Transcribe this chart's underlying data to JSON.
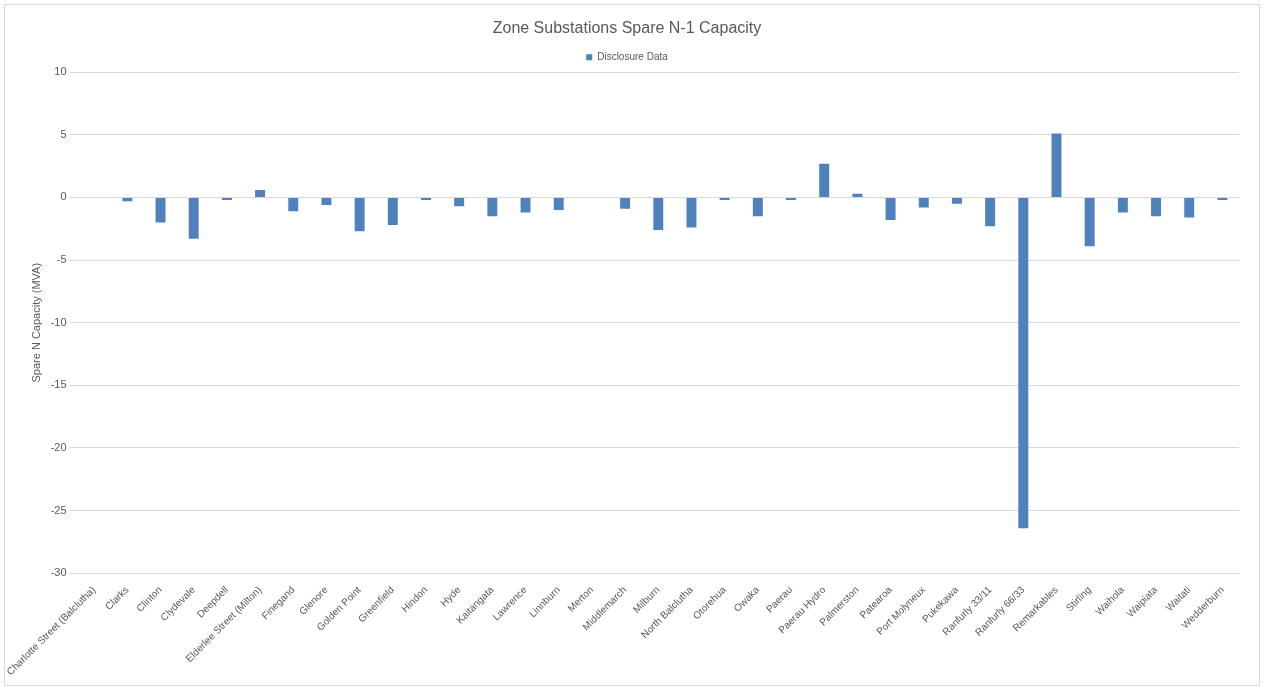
{
  "chart_data": {
    "type": "bar",
    "title": "Zone Substations Spare N-1 Capacity",
    "ylabel": "Spare N Capacity (MVA)",
    "categories": [
      "Charlotte Street (Balclutha)",
      "Clarks",
      "Clinton",
      "Clydevale",
      "Deepdell",
      "Elderlee Street (Milton)",
      "Finegand",
      "Glenore",
      "Golden Point",
      "Greenfield",
      "Hindon",
      "Hyde",
      "Kaitangata",
      "Lawrence",
      "Linnburn",
      "Merton",
      "Middlemarch",
      "Milburn",
      "North Balclutha",
      "Otorehua",
      "Owaka",
      "Paerau",
      "Paerau Hydro",
      "Palmerston",
      "Patearoa",
      "Port Molyneux",
      "Pukekawa",
      "Ranfurly 33/11",
      "Ranfurly 66/33",
      "Remarkables",
      "Stirling",
      "Waihola",
      "Waipiata",
      "Waitati",
      "Wedderburn"
    ],
    "series": [
      {
        "name": "Disclosure Data",
        "color": "#4f81bd",
        "values": [
          0,
          -0.3,
          -2.0,
          -3.3,
          -0.2,
          0.6,
          -1.1,
          -0.6,
          -2.7,
          -2.2,
          -0.2,
          -0.7,
          -1.5,
          -1.2,
          -1.0,
          0,
          -0.9,
          -2.6,
          -2.4,
          -0.2,
          -1.5,
          -0.2,
          2.7,
          0.3,
          -1.8,
          -0.8,
          -0.5,
          -2.3,
          -26.4,
          5.1,
          -3.9,
          -1.2,
          -1.5,
          -1.6,
          -0.2
        ]
      }
    ],
    "ylim": [
      -30,
      10
    ],
    "yticks": [
      -30,
      -25,
      -20,
      -15,
      -10,
      -5,
      0,
      5,
      10
    ],
    "grid": "y",
    "legend": "top"
  }
}
